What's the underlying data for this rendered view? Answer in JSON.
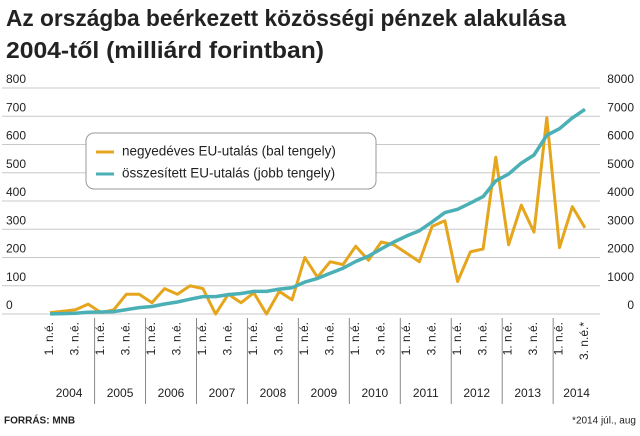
{
  "chart_data": {
    "type": "line",
    "title": "Az országba beérkezett közösségi pénzek alakulása",
    "subtitle": "2004-től (milliárd forintban)",
    "categories": [
      "1. n.é.",
      null,
      "3. n.é.",
      null,
      "1. n.é.",
      null,
      "3. n.é.",
      null,
      "1. n.é.",
      null,
      "3. n.é.",
      null,
      "1. n.é.",
      null,
      "3. n.é.",
      null,
      "1. n.é.",
      null,
      "3. n.é.",
      null,
      "1. n.é.",
      null,
      "3. n.é.",
      null,
      "1. n.é.",
      null,
      "3. n.é.",
      null,
      "1. n.é.",
      null,
      "3. n.é.",
      null,
      "1. n.é.",
      null,
      "3. n.é.",
      null,
      "1. n.é.",
      null,
      "3. n.é.",
      null,
      "1. n.é.",
      null,
      "3. n.é.*"
    ],
    "years": [
      "2004",
      "2005",
      "2006",
      "2007",
      "2008",
      "2009",
      "2010",
      "2011",
      "2012",
      "2013",
      "2014"
    ],
    "series": [
      {
        "name": "negyedéves EU-utalás (bal tengely)",
        "color": "#e5a51c",
        "values": [
          5,
          10,
          15,
          35,
          5,
          15,
          70,
          70,
          40,
          90,
          70,
          100,
          90,
          0,
          70,
          40,
          75,
          0,
          80,
          50,
          200,
          130,
          185,
          175,
          240,
          190,
          255,
          245,
          215,
          185,
          310,
          330,
          115,
          220,
          230,
          555,
          245,
          385,
          290,
          695,
          235,
          380,
          305
        ]
      },
      {
        "name": "összesített EU-utalás (jobb tengely)",
        "color": "#4bb0b6",
        "axis": "y2",
        "values": [
          5,
          15,
          30,
          65,
          70,
          85,
          155,
          225,
          265,
          355,
          425,
          525,
          615,
          615,
          685,
          725,
          800,
          800,
          880,
          930,
          1130,
          1260,
          1445,
          1620,
          1860,
          2050,
          2305,
          2550,
          2765,
          2950,
          3260,
          3590,
          3705,
          3925,
          4155,
          4710,
          4955,
          5340,
          5630,
          6325,
          6560,
          6940,
          7245
        ]
      }
    ],
    "ylim": [
      0,
      800
    ],
    "yticks": [
      0,
      100,
      200,
      300,
      400,
      500,
      600,
      700,
      800
    ],
    "y2lim": [
      0,
      8000
    ],
    "y2ticks": [
      0,
      1000,
      2000,
      3000,
      4000,
      5000,
      6000,
      7000,
      8000
    ],
    "grid": true,
    "source": "FORRÁS: MNB",
    "footnote": "*2014 júl., aug"
  }
}
